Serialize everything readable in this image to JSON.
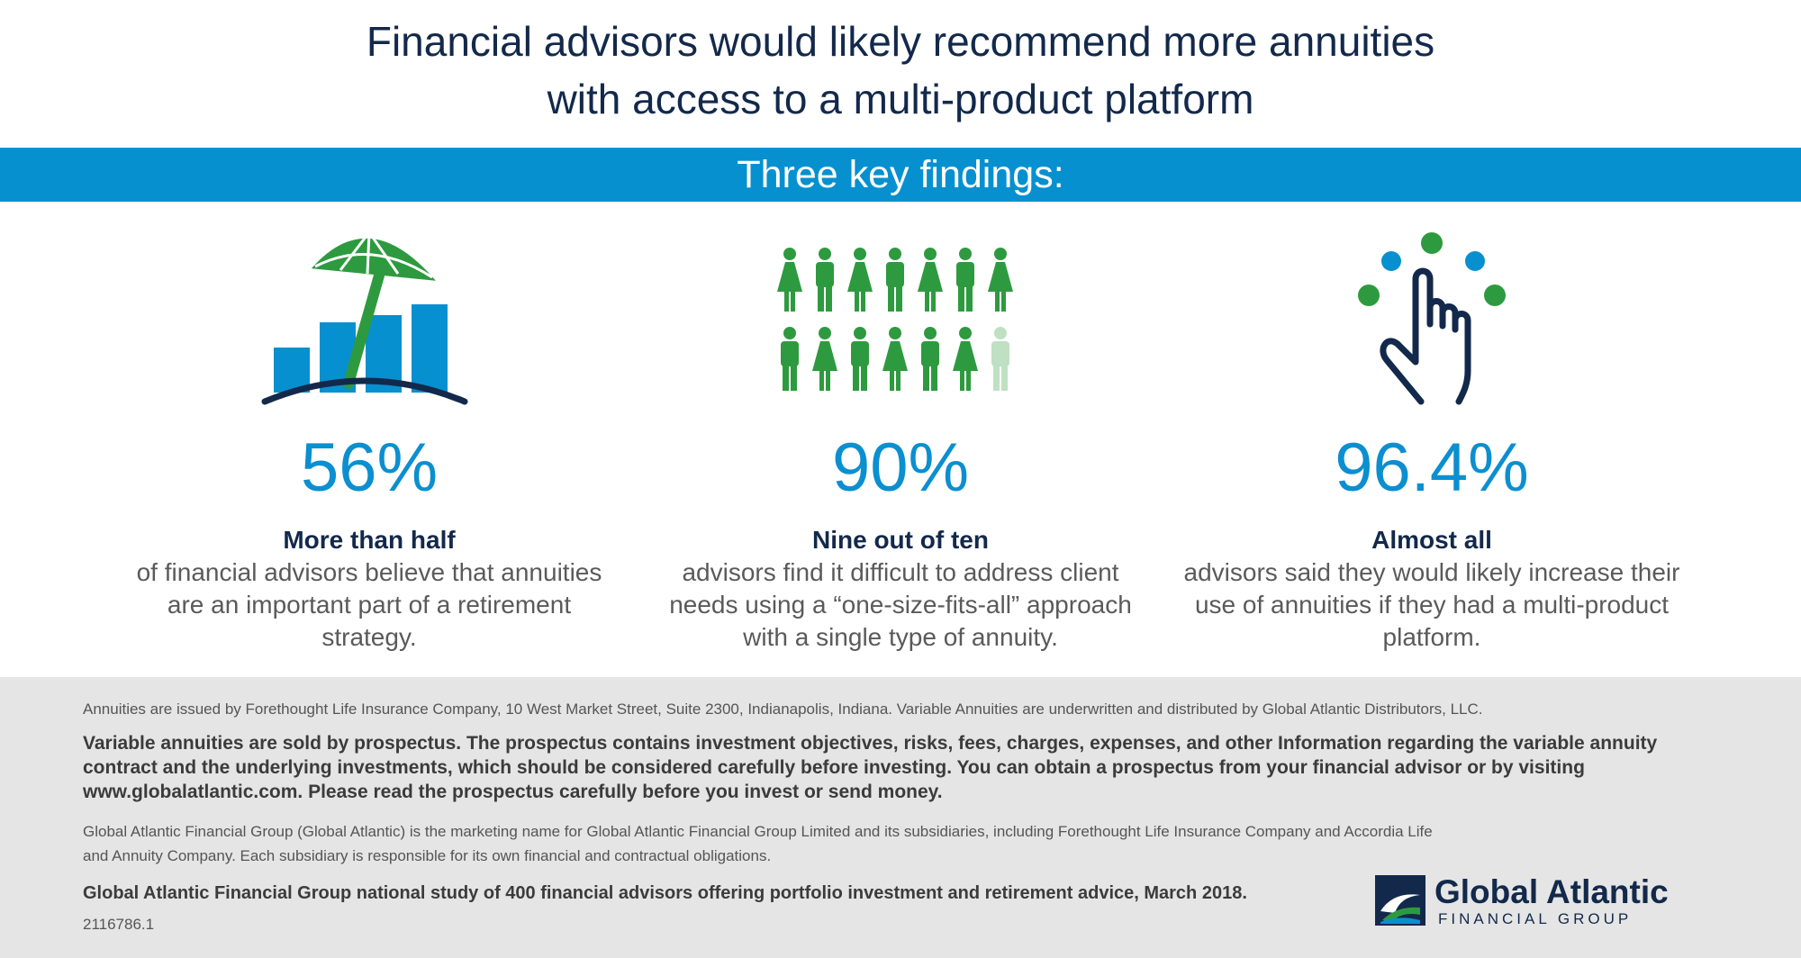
{
  "header": {
    "title_line1": "Financial advisors would likely recommend more annuities",
    "title_line2": "with access to a multi-product platform"
  },
  "band": {
    "label": "Three key findings:"
  },
  "findings": [
    {
      "icon": "umbrella-bar-chart-icon",
      "stat": "56%",
      "lead": "More than half",
      "desc": "of financial advisors believe that annuities are an important part of a retirement strategy."
    },
    {
      "icon": "people-grid-icon",
      "stat": "90%",
      "lead": "Nine out of ten",
      "desc": "advisors find it difficult to address client needs using a “one-size-fits-all” approach with a single type of annuity."
    },
    {
      "icon": "hand-juggling-dots-icon",
      "stat": "96.4%",
      "lead": "Almost all",
      "desc": "advisors said they would likely increase their use of annuities if they had a multi-product platform."
    }
  ],
  "footer": {
    "issuer_note": "Annuities are issued by Forethought Life Insurance Company, 10 West Market Street, Suite 2300, Indianapolis, Indiana. Variable Annuities are underwritten and distributed by Global Atlantic Distributors, LLC.",
    "prospectus_note": "Variable annuities are sold by prospectus. The prospectus contains investment objectives, risks, fees, charges, expenses, and other Information regarding the variable annuity contract and the underlying investments, which should be considered carefully before investing. You can obtain a prospectus from your financial advisor or by visiting www.globalatlantic.com. Please read the prospectus carefully before you invest or send money.",
    "marketing_line1": "Global Atlantic Financial Group (Global Atlantic) is the marketing name for Global Atlantic Financial Group Limited and its subsidiaries, including Forethought Life Insurance Company and Accordia Life",
    "marketing_line2": "and Annuity Company. Each subsidiary is responsible for its own financial and contractual obligations.",
    "study_note": "Global Atlantic Financial Group national study of 400 financial advisors offering portfolio investment and retirement advice, March 2018.",
    "code": "2116786.1"
  },
  "logo": {
    "name": "Global Atlantic",
    "subtitle": "FINANCIAL GROUP"
  },
  "colors": {
    "navy": "#13294b",
    "blue": "#0790cf",
    "green": "#2e9a3f",
    "light_green": "#bfe0c3",
    "footer_bg": "#e5e5e5"
  }
}
